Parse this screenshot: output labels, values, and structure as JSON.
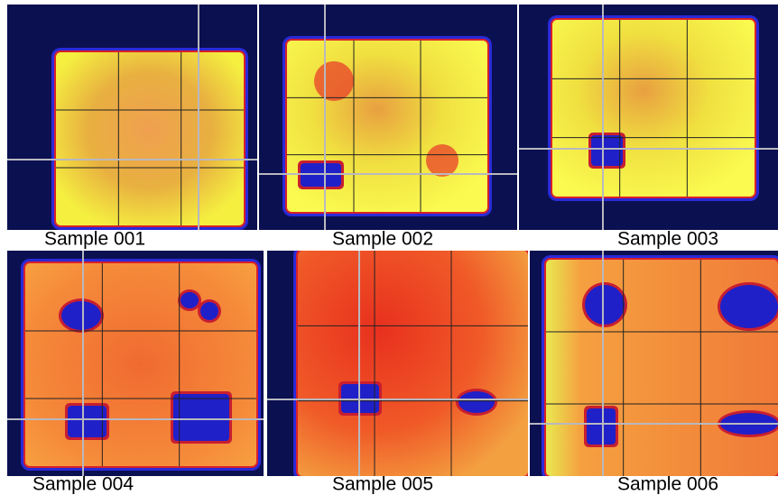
{
  "panels": [
    {
      "label": "Sample 001"
    },
    {
      "label": "Sample 002"
    },
    {
      "label": "Sample 003"
    },
    {
      "label": "Sample 004"
    },
    {
      "label": "Sample 005"
    },
    {
      "label": "Sample 006"
    }
  ]
}
